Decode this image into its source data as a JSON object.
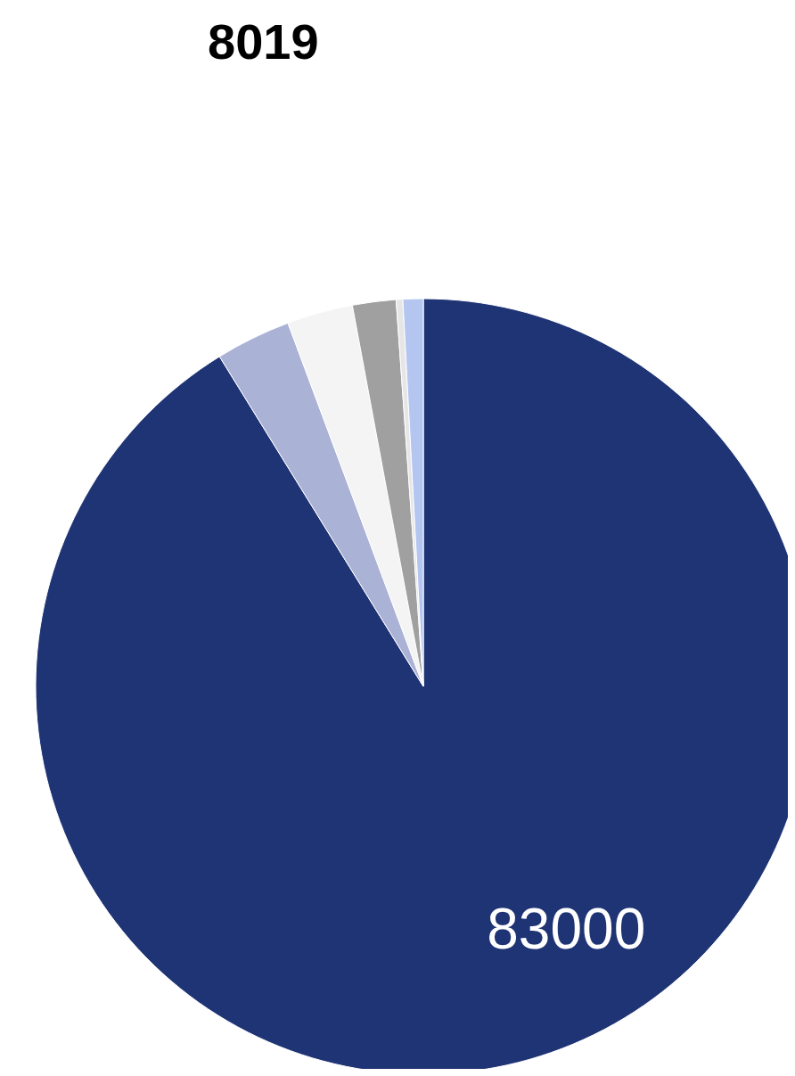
{
  "chart_data": {
    "type": "pie",
    "categories": [
      null,
      null,
      null,
      null,
      null,
      null
    ],
    "values": [
      83000,
      2850,
      2500,
      1650,
      250,
      769
    ],
    "colors": [
      "#1f3474",
      "#aab2d6",
      "#f4f4f4",
      "#a0a0a0",
      "#e6e6e6",
      "#b4c6f0"
    ],
    "value_labels": [
      "83000",
      null,
      null,
      null,
      null,
      null
    ],
    "annotations": [
      "8019"
    ]
  }
}
